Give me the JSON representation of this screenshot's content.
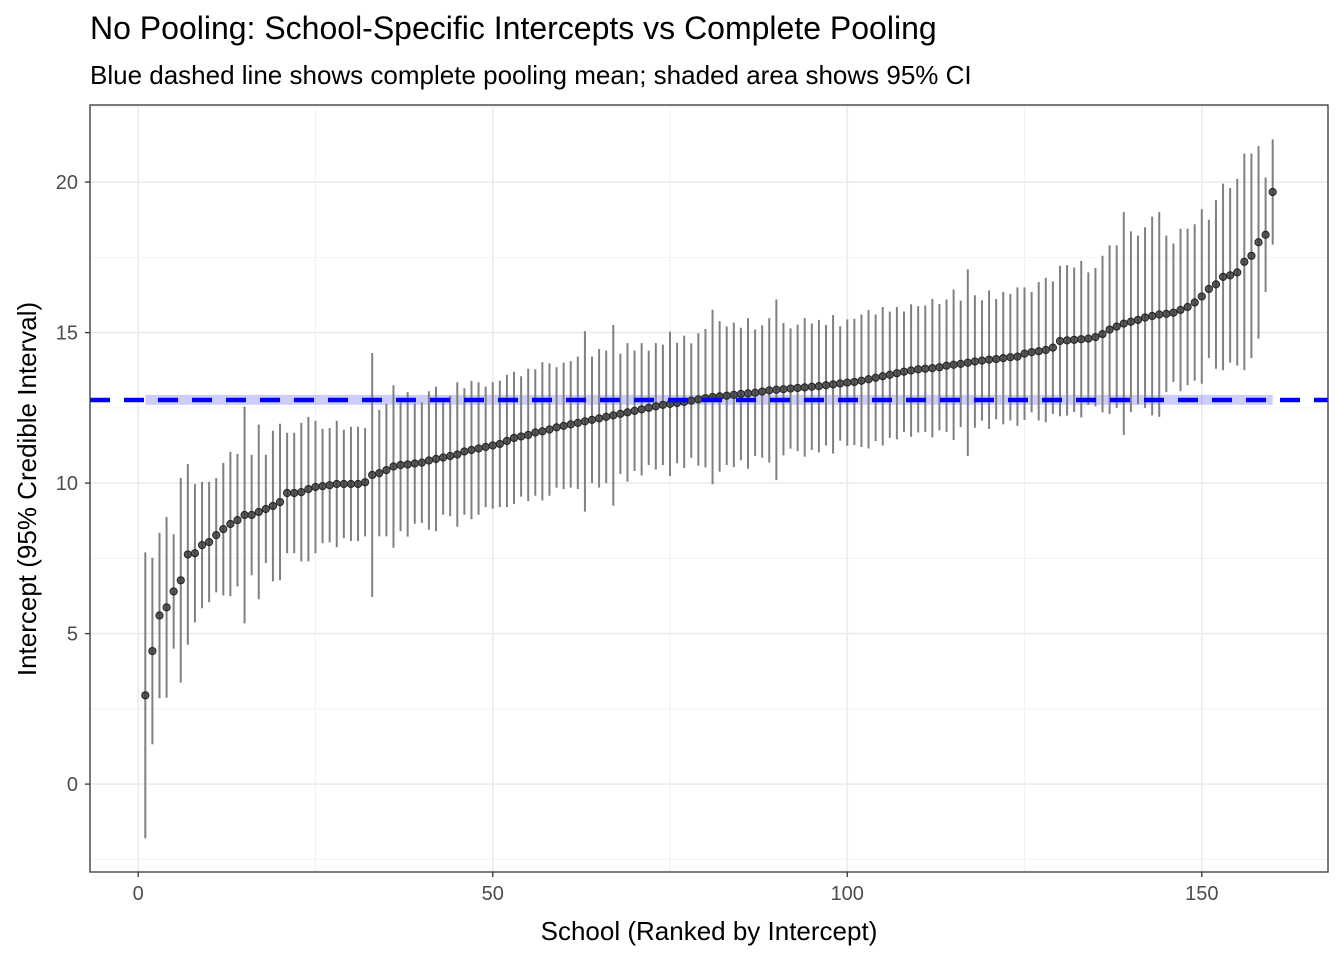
{
  "chart_data": {
    "type": "scatter",
    "title": "No Pooling: School-Specific Intercepts vs Complete Pooling",
    "subtitle": "Blue dashed line shows complete pooling mean; shaded area shows 95% CI",
    "xlabel": "School (Ranked by Intercept)",
    "ylabel": "Intercept (95% Credible Interval)",
    "xlim": [
      -6.8,
      167.8
    ],
    "ylim": [
      -2.92,
      22.56
    ],
    "xticks": [
      0,
      50,
      100,
      150
    ],
    "yticks": [
      0,
      5,
      10,
      15,
      20
    ],
    "grid": true,
    "pooling": {
      "mean": 12.76,
      "lower": 12.6,
      "upper": 12.93,
      "color": "#0000FF"
    },
    "point_color": "#333333",
    "errorbar_color": "#808080",
    "means": [
      2.95,
      4.42,
      5.6,
      5.87,
      6.4,
      6.77,
      7.63,
      7.67,
      7.94,
      8.04,
      8.27,
      8.47,
      8.64,
      8.77,
      8.94,
      8.94,
      9.04,
      9.14,
      9.24,
      9.37,
      9.67,
      9.67,
      9.7,
      9.8,
      9.87,
      9.9,
      9.93,
      9.97,
      9.97,
      9.97,
      9.97,
      10.03,
      10.27,
      10.33,
      10.43,
      10.55,
      10.6,
      10.62,
      10.65,
      10.68,
      10.75,
      10.8,
      10.85,
      10.9,
      10.95,
      11.05,
      11.1,
      11.15,
      11.2,
      11.25,
      11.3,
      11.4,
      11.5,
      11.55,
      11.6,
      11.68,
      11.72,
      11.78,
      11.85,
      11.9,
      11.95,
      12.0,
      12.05,
      12.1,
      12.15,
      12.2,
      12.25,
      12.3,
      12.35,
      12.4,
      12.45,
      12.5,
      12.55,
      12.6,
      12.63,
      12.66,
      12.7,
      12.74,
      12.78,
      12.82,
      12.86,
      12.88,
      12.9,
      12.93,
      12.96,
      12.98,
      13.0,
      13.04,
      13.08,
      13.1,
      13.12,
      13.14,
      13.16,
      13.18,
      13.2,
      13.22,
      13.25,
      13.28,
      13.31,
      13.34,
      13.36,
      13.4,
      13.45,
      13.5,
      13.55,
      13.6,
      13.65,
      13.7,
      13.74,
      13.78,
      13.8,
      13.82,
      13.85,
      13.9,
      13.93,
      13.96,
      14.0,
      14.04,
      14.07,
      14.1,
      14.12,
      14.15,
      14.18,
      14.2,
      14.3,
      14.35,
      14.38,
      14.42,
      14.5,
      14.72,
      14.74,
      14.76,
      14.78,
      14.8,
      14.85,
      14.95,
      15.1,
      15.2,
      15.3,
      15.36,
      15.42,
      15.5,
      15.55,
      15.6,
      15.62,
      15.66,
      15.75,
      15.85,
      16.0,
      16.2,
      16.45,
      16.6,
      16.85,
      16.9,
      17.0,
      17.35,
      17.55,
      18.0,
      18.25,
      19.67
    ],
    "ci_halfwidth": [
      4.75,
      3.1,
      2.75,
      3.0,
      1.9,
      3.4,
      3.0,
      2.3,
      2.1,
      2.0,
      1.9,
      2.2,
      2.4,
      2.2,
      3.6,
      2.0,
      2.9,
      1.8,
      2.5,
      2.6,
      2.0,
      2.0,
      2.3,
      2.4,
      2.2,
      1.9,
      1.9,
      2.1,
      1.8,
      1.9,
      1.9,
      1.8,
      4.05,
      2.1,
      2.2,
      2.7,
      2.2,
      2.4,
      2.0,
      2.0,
      2.3,
      2.4,
      1.9,
      2.0,
      2.4,
      2.1,
      2.3,
      2.2,
      2.0,
      2.1,
      2.1,
      2.2,
      2.2,
      2.0,
      2.2,
      2.1,
      2.3,
      2.2,
      2.0,
      2.1,
      2.1,
      2.2,
      3.0,
      2.1,
      2.3,
      2.2,
      3.0,
      2.0,
      2.3,
      2.0,
      2.2,
      1.9,
      2.1,
      2.0,
      2.4,
      2.0,
      2.2,
      1.9,
      2.2,
      2.3,
      2.9,
      2.5,
      2.3,
      2.4,
      2.2,
      2.5,
      2.1,
      2.2,
      2.4,
      3.0,
      2.2,
      2.0,
      2.1,
      2.3,
      2.1,
      2.2,
      2.0,
      2.3,
      1.9,
      2.1,
      2.1,
      2.2,
      2.3,
      2.1,
      2.3,
      2.1,
      2.2,
      2.0,
      2.2,
      2.1,
      2.1,
      2.3,
      2.1,
      2.2,
      2.5,
      2.1,
      3.1,
      2.2,
      2.0,
      2.3,
      2.0,
      2.2,
      2.1,
      2.3,
      2.2,
      2.0,
      2.3,
      2.4,
      2.2,
      2.5,
      2.5,
      2.4,
      2.6,
      2.2,
      2.3,
      2.6,
      2.8,
      2.7,
      3.7,
      3.0,
      2.8,
      3.0,
      3.3,
      3.4,
      2.6,
      2.3,
      2.7,
      2.6,
      2.6,
      2.9,
      2.3,
      2.8,
      3.1,
      2.9,
      3.1,
      3.6,
      3.4,
      3.2,
      1.9,
      1.75
    ]
  }
}
